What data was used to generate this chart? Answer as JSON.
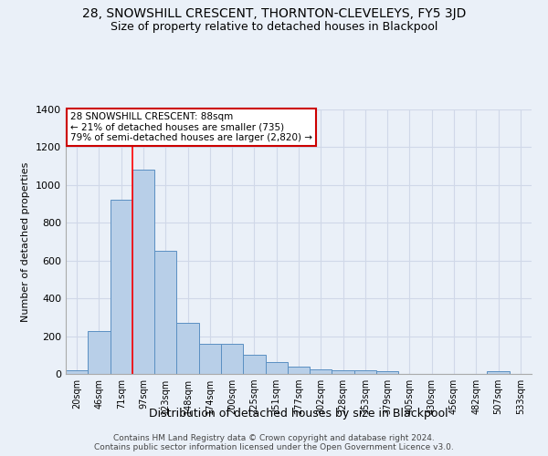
{
  "title": "28, SNOWSHILL CRESCENT, THORNTON-CLEVELEYS, FY5 3JD",
  "subtitle": "Size of property relative to detached houses in Blackpool",
  "xlabel": "Distribution of detached houses by size in Blackpool",
  "ylabel": "Number of detached properties",
  "categories": [
    "20sqm",
    "46sqm",
    "71sqm",
    "97sqm",
    "123sqm",
    "148sqm",
    "174sqm",
    "200sqm",
    "225sqm",
    "251sqm",
    "277sqm",
    "302sqm",
    "328sqm",
    "353sqm",
    "379sqm",
    "405sqm",
    "430sqm",
    "456sqm",
    "482sqm",
    "507sqm",
    "533sqm"
  ],
  "values": [
    20,
    225,
    920,
    1080,
    650,
    270,
    160,
    160,
    100,
    65,
    40,
    25,
    20,
    20,
    15,
    0,
    0,
    0,
    0,
    15,
    0
  ],
  "bar_color": "#b8cfe8",
  "bar_edge_color": "#5a8fc2",
  "background_color": "#eaf0f8",
  "grid_color": "#d0d8e8",
  "red_line_x": 3.0,
  "annotation_text": "28 SNOWSHILL CRESCENT: 88sqm\n← 21% of detached houses are smaller (735)\n79% of semi-detached houses are larger (2,820) →",
  "annotation_box_color": "#ffffff",
  "annotation_box_edge_color": "#cc0000",
  "footer_text": "Contains HM Land Registry data © Crown copyright and database right 2024.\nContains public sector information licensed under the Open Government Licence v3.0.",
  "ylim": [
    0,
    1400
  ],
  "yticks": [
    0,
    200,
    400,
    600,
    800,
    1000,
    1200,
    1400
  ],
  "title_fontsize": 10,
  "subtitle_fontsize": 9,
  "ylabel_fontsize": 8,
  "xlabel_fontsize": 9,
  "tick_fontsize": 8,
  "footer_fontsize": 6.5
}
